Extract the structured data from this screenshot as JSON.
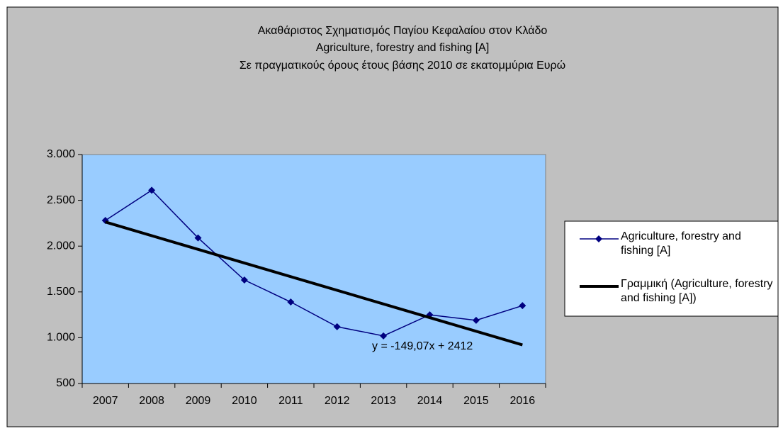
{
  "chart_data": {
    "type": "line",
    "title": [
      "Ακαθάριστος Σχηματισμός Παγίου Κεφαλαίου στον Κλάδο",
      "Agriculture, forestry and fishing [A]",
      "Σε πραγματικούς όρους έτους βάσης 2010 σε εκατομμύρια Ευρώ"
    ],
    "categories": [
      "2007",
      "2008",
      "2009",
      "2010",
      "2011",
      "2012",
      "2013",
      "2014",
      "2015",
      "2016"
    ],
    "series": [
      {
        "name": "Agriculture, forestry and fishing [A]",
        "color": "#000080",
        "values": [
          2280,
          2610,
          2090,
          1630,
          1390,
          1120,
          1020,
          1250,
          1190,
          1350
        ]
      }
    ],
    "trendline": {
      "name": "Γραμμική (Agriculture, forestry and fishing [A])",
      "color": "#000000",
      "slope": -149.07,
      "intercept": 2412,
      "label": "y = -149,07x + 2412"
    },
    "ylim": [
      500,
      3000
    ],
    "yticks": [
      500,
      {
        "value": 1000,
        "label": "1.000"
      },
      {
        "value": 1500,
        "label": "1.500"
      },
      {
        "value": 2000,
        "label": "2.000"
      },
      {
        "value": 2500,
        "label": "2.500"
      },
      {
        "value": 3000,
        "label": "3.000"
      }
    ],
    "legend": "right"
  }
}
